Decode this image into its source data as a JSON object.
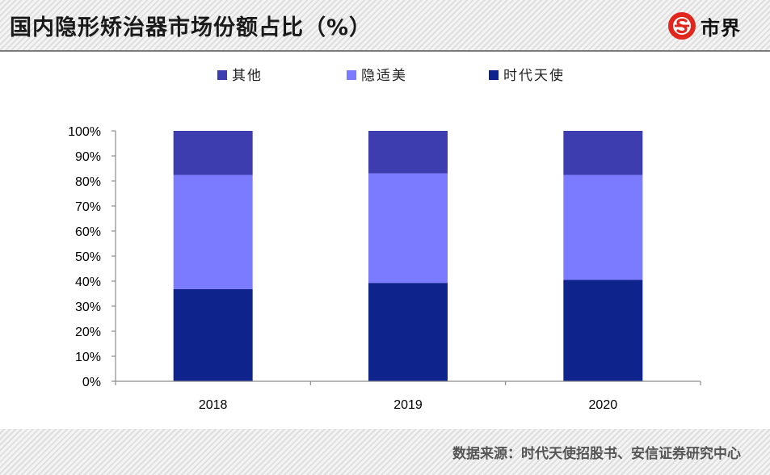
{
  "header": {
    "title": "国内隐形矫治器市场份额占比（%）",
    "logo_text": "市界",
    "logo_icon": "s-circle-logo-icon",
    "accent_color": "#e0261d"
  },
  "footer": {
    "source": "数据来源：时代天使招股书、安信证券研究中心"
  },
  "chart_data": {
    "type": "bar",
    "stacked": true,
    "categories": [
      "2018",
      "2019",
      "2020"
    ],
    "series": [
      {
        "name": "时代天使",
        "color": "#0f238c",
        "values": [
          36.8,
          39.3,
          40.5
        ]
      },
      {
        "name": "隐适美",
        "color": "#7b7bff",
        "values": [
          45.6,
          43.7,
          41.9
        ]
      },
      {
        "name": "其他",
        "color": "#3d3daf",
        "values": [
          17.6,
          17.0,
          17.6
        ]
      }
    ],
    "legend_order": [
      "其他",
      "隐适美",
      "时代天使"
    ],
    "ylim": [
      0,
      100
    ],
    "yticks": [
      "0%",
      "10%",
      "20%",
      "30%",
      "40%",
      "50%",
      "60%",
      "70%",
      "80%",
      "90%",
      "100%"
    ],
    "grid": false,
    "legend_position": "top"
  }
}
